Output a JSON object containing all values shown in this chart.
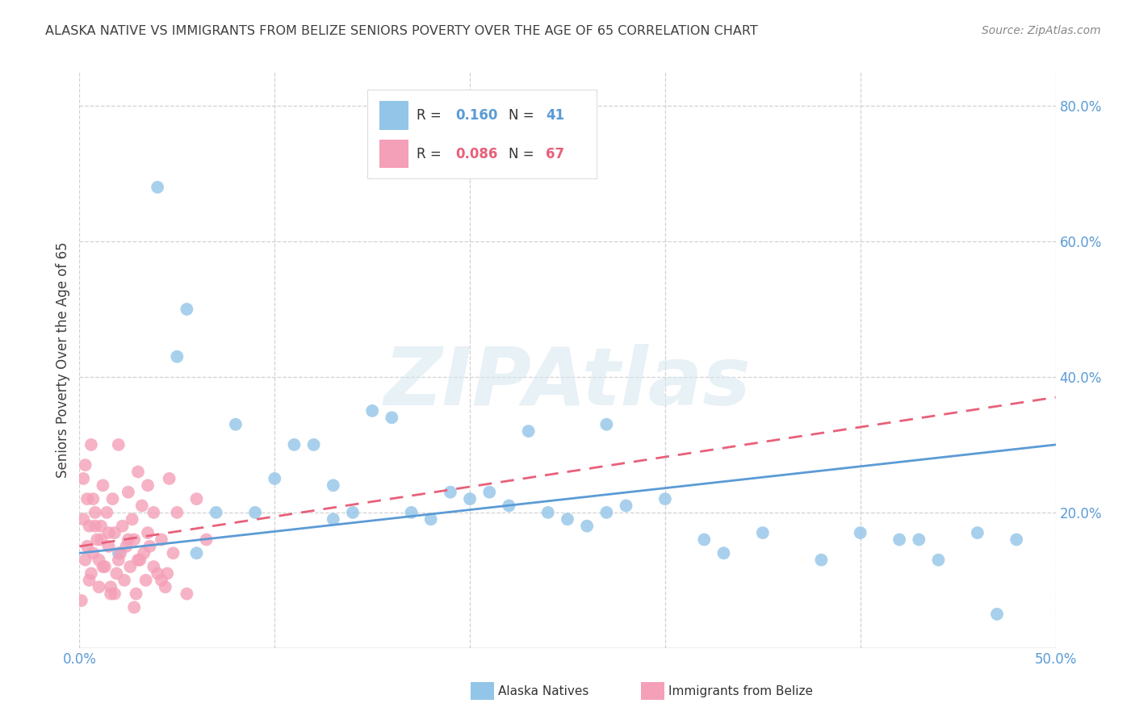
{
  "title": "ALASKA NATIVE VS IMMIGRANTS FROM BELIZE SENIORS POVERTY OVER THE AGE OF 65 CORRELATION CHART",
  "source": "Source: ZipAtlas.com",
  "ylabel": "Seniors Poverty Over the Age of 65",
  "xlim": [
    0.0,
    0.5
  ],
  "ylim": [
    0.0,
    0.85
  ],
  "xticks": [
    0.0,
    0.5
  ],
  "xticklabels": [
    "0.0%",
    "50.0%"
  ],
  "right_yticks": [
    0.2,
    0.4,
    0.6,
    0.8
  ],
  "right_yticklabels": [
    "20.0%",
    "40.0%",
    "60.0%",
    "80.0%"
  ],
  "alaska_color": "#92C5E8",
  "belize_color": "#F4A0B8",
  "alaska_line_color": "#5B9BD5",
  "belize_line_color": "#E8607A",
  "alaska_R": 0.16,
  "alaska_N": 41,
  "belize_R": 0.086,
  "belize_N": 67,
  "legend_label_alaska": "Alaska Natives",
  "legend_label_belize": "Immigrants from Belize",
  "watermark": "ZIPAtlas",
  "alaska_x": [
    0.02,
    0.04,
    0.055,
    0.06,
    0.07,
    0.08,
    0.09,
    0.1,
    0.11,
    0.12,
    0.13,
    0.14,
    0.15,
    0.16,
    0.17,
    0.18,
    0.19,
    0.2,
    0.22,
    0.23,
    0.24,
    0.25,
    0.26,
    0.27,
    0.28,
    0.3,
    0.32,
    0.35,
    0.38,
    0.4,
    0.42,
    0.44,
    0.46,
    0.47,
    0.48,
    0.05,
    0.13,
    0.21,
    0.27,
    0.33,
    0.43
  ],
  "alaska_y": [
    0.14,
    0.68,
    0.5,
    0.14,
    0.2,
    0.33,
    0.2,
    0.25,
    0.3,
    0.3,
    0.19,
    0.2,
    0.35,
    0.34,
    0.2,
    0.19,
    0.23,
    0.22,
    0.21,
    0.32,
    0.2,
    0.19,
    0.18,
    0.33,
    0.21,
    0.22,
    0.16,
    0.17,
    0.13,
    0.17,
    0.16,
    0.13,
    0.17,
    0.05,
    0.16,
    0.43,
    0.24,
    0.23,
    0.2,
    0.14,
    0.16
  ],
  "belize_x": [
    0.002,
    0.003,
    0.004,
    0.005,
    0.006,
    0.007,
    0.008,
    0.009,
    0.01,
    0.011,
    0.012,
    0.013,
    0.014,
    0.015,
    0.016,
    0.017,
    0.018,
    0.019,
    0.02,
    0.021,
    0.022,
    0.023,
    0.024,
    0.025,
    0.026,
    0.027,
    0.028,
    0.029,
    0.03,
    0.031,
    0.032,
    0.033,
    0.034,
    0.035,
    0.036,
    0.038,
    0.04,
    0.042,
    0.044,
    0.046,
    0.048,
    0.05,
    0.055,
    0.06,
    0.065,
    0.003,
    0.005,
    0.008,
    0.012,
    0.018,
    0.025,
    0.03,
    0.038,
    0.045,
    0.001,
    0.004,
    0.007,
    0.01,
    0.015,
    0.02,
    0.028,
    0.035,
    0.042,
    0.002,
    0.006,
    0.011,
    0.016
  ],
  "belize_y": [
    0.25,
    0.27,
    0.22,
    0.18,
    0.3,
    0.14,
    0.2,
    0.16,
    0.13,
    0.18,
    0.24,
    0.12,
    0.2,
    0.15,
    0.09,
    0.22,
    0.17,
    0.11,
    0.3,
    0.14,
    0.18,
    0.1,
    0.15,
    0.23,
    0.12,
    0.19,
    0.16,
    0.08,
    0.26,
    0.13,
    0.21,
    0.14,
    0.1,
    0.17,
    0.15,
    0.12,
    0.11,
    0.16,
    0.09,
    0.25,
    0.14,
    0.2,
    0.08,
    0.22,
    0.16,
    0.13,
    0.1,
    0.18,
    0.12,
    0.08,
    0.16,
    0.13,
    0.2,
    0.11,
    0.07,
    0.15,
    0.22,
    0.09,
    0.17,
    0.13,
    0.06,
    0.24,
    0.1,
    0.19,
    0.11,
    0.16,
    0.08
  ],
  "background_color": "#FFFFFF",
  "grid_color": "#CCCCCC",
  "title_color": "#404040",
  "tick_color": "#5B9BD5"
}
